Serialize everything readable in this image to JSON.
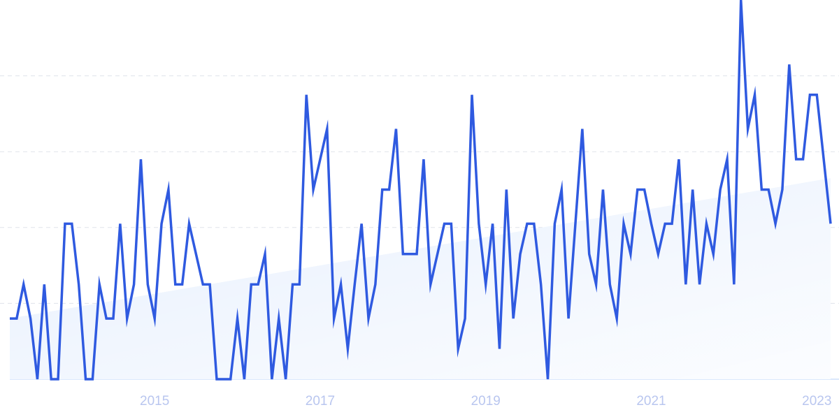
{
  "chart_data": {
    "type": "line",
    "categories": [
      null,
      null,
      null,
      null,
      null,
      null,
      null,
      null,
      null,
      null,
      null,
      null,
      null,
      null,
      null,
      null,
      null,
      null,
      null,
      null,
      null,
      "2015",
      null,
      null,
      null,
      null,
      null,
      null,
      null,
      null,
      null,
      null,
      null,
      null,
      null,
      null,
      null,
      null,
      null,
      null,
      null,
      null,
      null,
      null,
      null,
      "2017",
      null,
      null,
      null,
      null,
      null,
      null,
      null,
      null,
      null,
      null,
      null,
      null,
      null,
      null,
      null,
      null,
      null,
      null,
      null,
      null,
      null,
      null,
      null,
      "2019",
      null,
      null,
      null,
      null,
      null,
      null,
      null,
      null,
      null,
      null,
      null,
      null,
      null,
      null,
      null,
      null,
      null,
      null,
      null,
      null,
      null,
      null,
      null,
      "2021",
      null,
      null,
      null,
      null,
      null,
      null,
      null,
      null,
      null,
      null,
      null,
      null,
      null,
      null,
      null,
      null,
      null,
      null,
      null,
      null,
      null,
      null,
      null,
      "2023",
      null,
      null
    ],
    "values": [
      16,
      16,
      25,
      16,
      0,
      25,
      0,
      0,
      41,
      41,
      25,
      0,
      0,
      25,
      16,
      16,
      41,
      16,
      25,
      58,
      25,
      16,
      41,
      50,
      25,
      25,
      41,
      33,
      25,
      25,
      0,
      0,
      0,
      16,
      0,
      25,
      25,
      33,
      0,
      16,
      0,
      25,
      25,
      75,
      50,
      58,
      66,
      16,
      25,
      8,
      25,
      41,
      16,
      25,
      50,
      50,
      66,
      33,
      33,
      33,
      58,
      25,
      33,
      41,
      41,
      8,
      16,
      75,
      41,
      25,
      41,
      8,
      50,
      16,
      33,
      41,
      41,
      25,
      0,
      41,
      50,
      16,
      41,
      66,
      33,
      25,
      50,
      25,
      16,
      41,
      33,
      50,
      50,
      41,
      33,
      41,
      41,
      58,
      25,
      50,
      25,
      41,
      33,
      50,
      58,
      25,
      100,
      66,
      75,
      50,
      50,
      41,
      50,
      83,
      58,
      58,
      75,
      75,
      58,
      41
    ],
    "color": "#2f5ae0",
    "trend": [
      16,
      53
    ],
    "trend_color": "#dbe8fd",
    "ylim": [
      0,
      100
    ],
    "yticks": [
      0,
      20,
      40,
      60,
      80
    ],
    "grid": true
  }
}
